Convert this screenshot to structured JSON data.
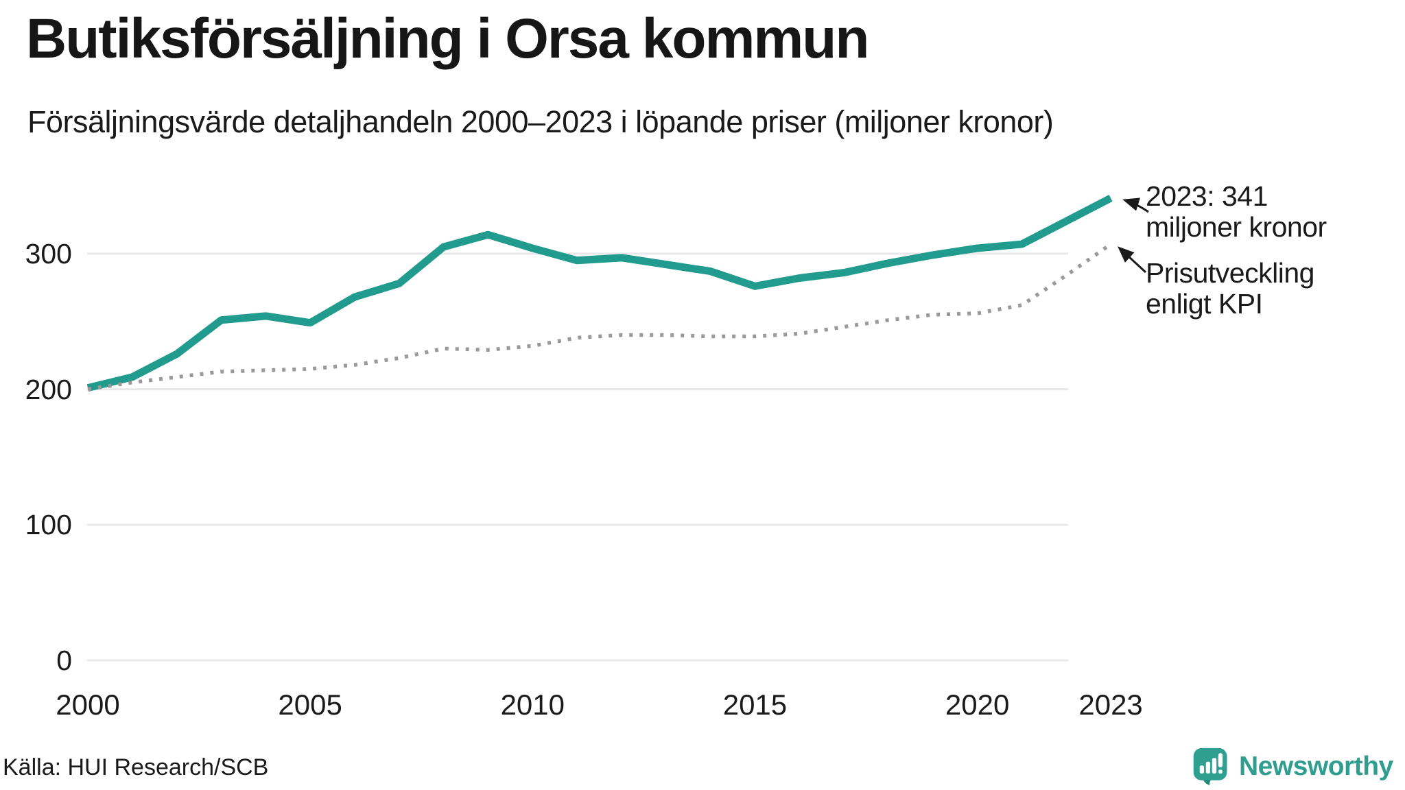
{
  "header": {
    "title": "Butiksförsäljning i Orsa kommun",
    "subtitle": "Försäljningsvärde detaljhandeln 2000–2023 i löpande priser (miljoner kronor)"
  },
  "annotations": {
    "sales": {
      "line1": "2023: 341",
      "line2": "miljoner kronor"
    },
    "kpi": {
      "line1": "Prisutveckling",
      "line2": "enligt KPI"
    }
  },
  "footer": {
    "source": "Källa: HUI Research/SCB",
    "logo_text": "Newsworthy"
  },
  "colors": {
    "sales_line": "#219b8d",
    "kpi_line": "#9a9a9a",
    "gridline": "#e8e8eb",
    "text": "#1a1a1a",
    "logo_teal": "#2e9f90",
    "logo_teal_dark": "#1f8577"
  },
  "chart_data": {
    "type": "line",
    "title": "Butiksförsäljning i Orsa kommun",
    "subtitle": "Försäljningsvärde detaljhandeln 2000–2023 i löpande priser (miljoner kronor)",
    "xlabel": "",
    "ylabel": "miljoner kronor",
    "xlim": [
      2000,
      2023
    ],
    "ylim": [
      0,
      395
    ],
    "grid": true,
    "legend": "none (direct line annotations)",
    "x": [
      2000,
      2001,
      2002,
      2003,
      2004,
      2005,
      2006,
      2007,
      2008,
      2009,
      2010,
      2011,
      2012,
      2013,
      2014,
      2015,
      2016,
      2017,
      2018,
      2019,
      2020,
      2021,
      2022,
      2023
    ],
    "x_ticks": [
      2000,
      2005,
      2010,
      2015,
      2020,
      2023
    ],
    "y_ticks": [
      0,
      100,
      200,
      300
    ],
    "series": [
      {
        "name": "Försäljningsvärde detaljhandeln i löpande priser",
        "style": "solid",
        "color": "#219b8d",
        "values": [
          201,
          209,
          226,
          251,
          254,
          249,
          268,
          278,
          305,
          314,
          304,
          295,
          297,
          292,
          287,
          276,
          282,
          286,
          293,
          299,
          304,
          307,
          324,
          341
        ]
      },
      {
        "name": "Prisutveckling enligt KPI",
        "style": "dotted",
        "color": "#9a9a9a",
        "values": [
          200,
          205,
          209,
          213,
          214,
          215,
          218,
          223,
          230,
          229,
          232,
          238,
          240,
          240,
          239,
          239,
          241,
          246,
          251,
          255,
          256,
          262,
          284,
          307
        ]
      }
    ]
  }
}
